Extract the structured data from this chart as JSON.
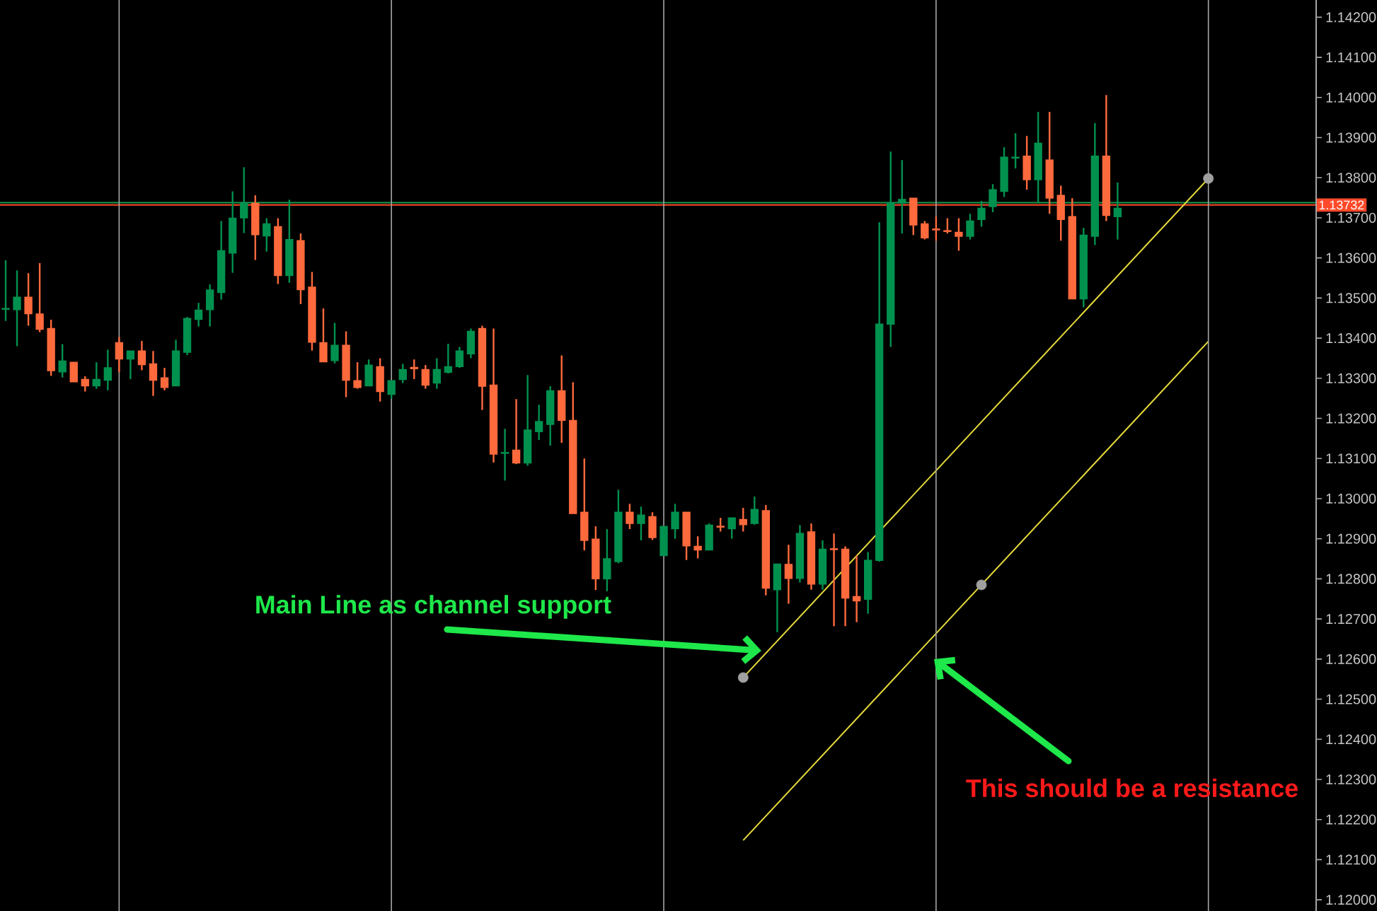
{
  "chart_data": {
    "type": "candlestick",
    "categories": [
      null,
      null,
      null,
      null,
      null,
      null,
      null,
      null,
      null,
      null,
      null,
      null,
      null,
      null,
      null,
      null,
      null,
      null,
      null,
      null,
      null,
      null,
      null,
      null,
      null,
      null,
      null,
      null,
      null,
      null,
      null,
      null,
      null,
      null,
      null,
      null,
      null,
      null,
      null,
      null,
      null,
      null,
      null,
      null,
      null,
      null,
      null,
      null,
      null,
      null,
      null,
      null,
      null,
      null,
      null,
      null,
      null,
      null,
      null,
      null,
      null,
      null,
      null,
      null,
      null,
      null,
      null,
      null,
      null,
      null,
      null,
      null,
      null,
      null,
      null,
      null,
      null,
      null,
      null,
      null,
      null,
      null,
      null,
      null,
      null,
      null,
      null,
      null,
      null,
      null,
      null,
      null,
      null,
      null,
      null,
      null,
      null,
      null,
      null,
      null,
      null,
      null,
      null,
      null,
      null,
      null,
      null,
      null,
      null,
      null,
      null,
      null,
      null,
      null,
      null,
      null
    ],
    "ohlc": [
      [
        1.13472,
        1.13594,
        1.13443,
        1.13474
      ],
      [
        1.13471,
        1.13569,
        1.1338,
        1.13502
      ],
      [
        1.13502,
        1.13562,
        1.13431,
        1.13461
      ],
      [
        1.1346,
        1.13587,
        1.13415,
        1.13422
      ],
      [
        1.13424,
        1.13446,
        1.13306,
        1.13319
      ],
      [
        1.13316,
        1.13385,
        1.13302,
        1.13343
      ],
      [
        1.1334,
        1.1334,
        1.13291,
        1.13291
      ],
      [
        1.13297,
        1.13305,
        1.13267,
        1.13281
      ],
      [
        1.13281,
        1.1334,
        1.13274,
        1.13297
      ],
      [
        1.13295,
        1.13371,
        1.1327,
        1.13326
      ],
      [
        1.13389,
        1.13403,
        1.13315,
        1.13348
      ],
      [
        1.13348,
        1.13368,
        1.13298,
        1.13368
      ],
      [
        1.13368,
        1.13393,
        1.1332,
        1.13334
      ],
      [
        1.13336,
        1.13368,
        1.13256,
        1.13295
      ],
      [
        1.13301,
        1.13326,
        1.1327,
        1.13277
      ],
      [
        1.13281,
        1.13396,
        1.13281,
        1.13368
      ],
      [
        1.13365,
        1.13453,
        1.13358,
        1.13449
      ],
      [
        1.13447,
        1.13488,
        1.13429,
        1.1347
      ],
      [
        1.13471,
        1.13534,
        1.13429,
        1.1352
      ],
      [
        1.13514,
        1.13692,
        1.13496,
        1.13618
      ],
      [
        1.13612,
        1.13766,
        1.13563,
        1.13699
      ],
      [
        1.137,
        1.13826,
        1.13662,
        1.13736
      ],
      [
        1.13736,
        1.13756,
        1.13595,
        1.13658
      ],
      [
        1.13655,
        1.13699,
        1.13616,
        1.13685
      ],
      [
        1.13678,
        1.13699,
        1.13535,
        1.13556
      ],
      [
        1.13556,
        1.13745,
        1.13538,
        1.13646
      ],
      [
        1.13643,
        1.13661,
        1.13485,
        1.13521
      ],
      [
        1.13527,
        1.13565,
        1.13369,
        1.1339
      ],
      [
        1.13389,
        1.13474,
        1.13341,
        1.13341
      ],
      [
        1.13344,
        1.13438,
        1.13337,
        1.13382
      ],
      [
        1.13382,
        1.13417,
        1.13253,
        1.13295
      ],
      [
        1.13294,
        1.1334,
        1.13274,
        1.13277
      ],
      [
        1.13281,
        1.13347,
        1.13281,
        1.13333
      ],
      [
        1.13329,
        1.1335,
        1.13242,
        1.13267
      ],
      [
        1.1326,
        1.13294,
        1.13249,
        1.13294
      ],
      [
        1.13297,
        1.13336,
        1.13288,
        1.13322
      ],
      [
        1.13327,
        1.13347,
        1.13298,
        1.13324
      ],
      [
        1.13322,
        1.13333,
        1.13274,
        1.13283
      ],
      [
        1.13288,
        1.1335,
        1.13274,
        1.13322
      ],
      [
        1.13315,
        1.13386,
        1.13312,
        1.13329
      ],
      [
        1.13329,
        1.13378,
        1.13326,
        1.13368
      ],
      [
        1.13361,
        1.13424,
        1.1335,
        1.13417
      ],
      [
        1.13424,
        1.13431,
        1.13221,
        1.1328
      ],
      [
        1.13283,
        1.13424,
        1.1309,
        1.13111
      ],
      [
        1.13113,
        1.13174,
        1.13045,
        1.13115
      ],
      [
        1.13121,
        1.13248,
        1.13086,
        1.13089
      ],
      [
        1.13089,
        1.13308,
        1.13082,
        1.13171
      ],
      [
        1.13167,
        1.13234,
        1.13146,
        1.13192
      ],
      [
        1.13185,
        1.1328,
        1.13132,
        1.13269
      ],
      [
        1.13269,
        1.13357,
        1.13139,
        1.13195
      ],
      [
        1.13195,
        1.1329,
        1.12963,
        1.12963
      ],
      [
        1.12966,
        1.131,
        1.12871,
        1.12896
      ],
      [
        1.12899,
        1.12931,
        1.12772,
        1.128
      ],
      [
        1.128,
        1.12924,
        1.12769,
        1.1285
      ],
      [
        1.12843,
        1.13022,
        1.12839,
        1.12966
      ],
      [
        1.12966,
        1.12987,
        1.12924,
        1.12938
      ],
      [
        1.12938,
        1.1298,
        1.12896,
        1.12959
      ],
      [
        1.12955,
        1.12966,
        1.12897,
        1.12903
      ],
      [
        1.12858,
        1.12931,
        1.12857,
        1.12931
      ],
      [
        1.12925,
        1.12987,
        1.129,
        1.12966
      ],
      [
        1.12966,
        1.12966,
        1.12847,
        1.12882
      ],
      [
        1.12881,
        1.12906,
        1.12851,
        1.12872
      ],
      [
        1.12872,
        1.12938,
        1.12872,
        1.12934
      ],
      [
        1.12931,
        1.12952,
        1.12918,
        1.12929
      ],
      [
        1.12925,
        1.12952,
        1.129,
        1.12952
      ],
      [
        1.12948,
        1.12977,
        1.12918,
        1.12935
      ],
      [
        1.12938,
        1.13005,
        1.12935,
        1.12973
      ],
      [
        1.1297,
        1.12984,
        1.12759,
        1.12777
      ],
      [
        1.12773,
        1.12837,
        1.12667,
        1.12837
      ],
      [
        1.12836,
        1.12885,
        1.12738,
        1.12801
      ],
      [
        1.12801,
        1.12934,
        1.12791,
        1.12913
      ],
      [
        1.12917,
        1.12938,
        1.12773,
        1.12787
      ],
      [
        1.12787,
        1.12896,
        1.12773,
        1.12874
      ],
      [
        1.12875,
        1.12913,
        1.12682,
        1.12873
      ],
      [
        1.12874,
        1.12881,
        1.12682,
        1.12752
      ],
      [
        1.12756,
        1.12858,
        1.12692,
        1.12745
      ],
      [
        1.12749,
        1.12867,
        1.12713,
        1.12846
      ],
      [
        1.12846,
        1.13689,
        1.12843,
        1.13435
      ],
      [
        1.13435,
        1.13865,
        1.13378,
        1.13737
      ],
      [
        1.13737,
        1.13844,
        1.13661,
        1.13746
      ],
      [
        1.13749,
        1.13749,
        1.13657,
        1.13682
      ],
      [
        1.13685,
        1.13692,
        1.13646,
        1.1365
      ],
      [
        1.13672,
        1.13703,
        1.13643,
        1.1367
      ],
      [
        1.13668,
        1.13699,
        1.13661,
        1.13666
      ],
      [
        1.13664,
        1.13699,
        1.13618,
        1.13654
      ],
      [
        1.13654,
        1.1371,
        1.13646,
        1.13692
      ],
      [
        1.13696,
        1.13742,
        1.13678,
        1.13724
      ],
      [
        1.13728,
        1.13784,
        1.13714,
        1.1377
      ],
      [
        1.13766,
        1.13876,
        1.13752,
        1.13851
      ],
      [
        1.13849,
        1.13911,
        1.13823,
        1.13851
      ],
      [
        1.13854,
        1.13904,
        1.1377,
        1.13795
      ],
      [
        1.13795,
        1.13964,
        1.13738,
        1.13886
      ],
      [
        1.13844,
        1.13964,
        1.1371,
        1.13749
      ],
      [
        1.13756,
        1.1378,
        1.13643,
        1.13696
      ],
      [
        1.13703,
        1.13749,
        1.13498,
        1.13498
      ],
      [
        1.13498,
        1.13675,
        1.13477,
        1.13657
      ],
      [
        1.13654,
        1.13936,
        1.13632,
        1.13854
      ],
      [
        1.13854,
        1.14006,
        1.13692,
        1.13706
      ],
      [
        1.13703,
        1.13788,
        1.13646,
        1.13724
      ],
      null,
      null,
      null,
      null,
      null,
      null,
      null,
      null,
      null,
      null,
      null,
      null,
      null,
      null,
      null,
      null,
      null
    ],
    "colors": [
      "#00914f",
      "#00914f",
      "#ff6a3d",
      "#ff6a3d",
      "#ff6a3d",
      "#00914f",
      "#ff6a3d",
      "#ff6a3d",
      "#00914f",
      "#00914f",
      "#ff6a3d",
      "#00914f",
      "#ff6a3d",
      "#ff6a3d",
      "#ff6a3d",
      "#00914f",
      "#00914f",
      "#00914f",
      "#00914f",
      "#00914f",
      "#00914f",
      "#00914f",
      "#ff6a3d",
      "#00914f",
      "#ff6a3d",
      "#00914f",
      "#ff6a3d",
      "#ff6a3d",
      "#ff6a3d",
      "#00914f",
      "#ff6a3d",
      "#ff6a3d",
      "#00914f",
      "#ff6a3d",
      "#00914f",
      "#00914f",
      "#ff6a3d",
      "#ff6a3d",
      "#00914f",
      "#00914f",
      "#00914f",
      "#00914f",
      "#ff6a3d",
      "#ff6a3d",
      "#00914f",
      "#ff6a3d",
      "#00914f",
      "#00914f",
      "#00914f",
      "#ff6a3d",
      "#ff6a3d",
      "#ff6a3d",
      "#ff6a3d",
      "#00914f",
      "#00914f",
      "#ff6a3d",
      "#00914f",
      "#ff6a3d",
      "#00914f",
      "#00914f",
      "#ff6a3d",
      "#ff6a3d",
      "#00914f",
      "#ff6a3d",
      "#00914f",
      "#ff6a3d",
      "#00914f",
      "#ff6a3d",
      "#00914f",
      "#ff6a3d",
      "#00914f",
      "#ff6a3d",
      "#00914f",
      "#ff6a3d",
      "#ff6a3d",
      "#ff6a3d",
      "#00914f",
      "#00914f",
      "#00914f",
      "#00914f",
      "#ff6a3d",
      "#ff6a3d",
      "#ff6a3d",
      "#ff6a3d",
      "#ff6a3d",
      "#00914f",
      "#00914f",
      "#00914f",
      "#00914f",
      "#00914f",
      "#ff6a3d",
      "#00914f",
      "#ff6a3d",
      "#ff6a3d",
      "#ff6a3d",
      "#00914f",
      "#00914f",
      "#ff6a3d",
      "#00914f",
      null,
      null,
      null,
      null,
      null,
      null,
      null,
      null,
      null,
      null,
      null,
      null,
      null,
      null,
      null,
      null,
      null
    ],
    "series": [
      {
        "type": "line",
        "color": "#e8dc3c",
        "values": [
          null,
          null,
          null,
          null,
          null,
          null,
          null,
          null,
          null,
          null,
          null,
          null,
          null,
          null,
          null,
          null,
          null,
          null,
          null,
          null,
          null,
          null,
          null,
          null,
          null,
          null,
          null,
          null,
          null,
          null,
          null,
          null,
          null,
          null,
          null,
          null,
          null,
          null,
          null,
          null,
          null,
          null,
          null,
          null,
          null,
          null,
          null,
          null,
          null,
          null,
          null,
          null,
          null,
          null,
          null,
          null,
          null,
          null,
          null,
          null,
          null,
          null,
          null,
          null,
          null,
          1.12554,
          null,
          null,
          null,
          null,
          null,
          null,
          null,
          null,
          null,
          null,
          null,
          null,
          null,
          null,
          null,
          null,
          null,
          null,
          null,
          null,
          null,
          null,
          null,
          null,
          null,
          null,
          null,
          null,
          null,
          null,
          null,
          null,
          null,
          null,
          null,
          null,
          null,
          null,
          null,
          null,
          1.13798,
          null,
          null,
          null,
          null,
          null,
          null,
          null,
          null,
          null
        ]
      },
      {
        "type": "line",
        "color": "#e8dc3c",
        "values": [
          null,
          null,
          null,
          null,
          null,
          null,
          null,
          null,
          null,
          null,
          null,
          null,
          null,
          null,
          null,
          null,
          null,
          null,
          null,
          null,
          null,
          null,
          null,
          null,
          null,
          null,
          null,
          null,
          null,
          null,
          null,
          null,
          null,
          null,
          null,
          null,
          null,
          null,
          null,
          null,
          null,
          null,
          null,
          null,
          null,
          null,
          null,
          null,
          null,
          null,
          null,
          null,
          null,
          null,
          null,
          null,
          null,
          null,
          null,
          null,
          null,
          null,
          null,
          null,
          null,
          1.12148,
          null,
          null,
          null,
          null,
          null,
          null,
          null,
          null,
          null,
          null,
          null,
          null,
          null,
          null,
          null,
          null,
          null,
          null,
          null,
          null,
          null,
          null,
          null,
          null,
          null,
          null,
          null,
          null,
          null,
          null,
          null,
          null,
          null,
          null,
          null,
          null,
          null,
          null,
          null,
          null,
          1.13392,
          null,
          null,
          null,
          null,
          null,
          null,
          null,
          null,
          null
        ]
      },
      {
        "type": "scatter",
        "color": "#a0a0a0",
        "marker": "circle",
        "values": [
          null,
          null,
          null,
          null,
          null,
          null,
          null,
          null,
          null,
          null,
          null,
          null,
          null,
          null,
          null,
          null,
          null,
          null,
          null,
          null,
          null,
          null,
          null,
          null,
          null,
          null,
          null,
          null,
          null,
          null,
          null,
          null,
          null,
          null,
          null,
          null,
          null,
          null,
          null,
          null,
          null,
          null,
          null,
          null,
          null,
          null,
          null,
          null,
          null,
          null,
          null,
          null,
          null,
          null,
          null,
          null,
          null,
          null,
          null,
          null,
          null,
          null,
          null,
          null,
          null,
          1.12554,
          null,
          null,
          null,
          null,
          null,
          null,
          null,
          null,
          null,
          null,
          null,
          null,
          null,
          null,
          null,
          null,
          null,
          null,
          null,
          null,
          1.12785,
          null,
          null,
          null,
          null,
          null,
          null,
          null,
          null,
          null,
          null,
          null,
          null,
          null,
          null,
          null,
          null,
          null,
          null,
          null,
          1.13798,
          null,
          null,
          null,
          null,
          null,
          null,
          null,
          null,
          null
        ]
      }
    ],
    "ylim": [
      1.11972,
      1.14243
    ],
    "yticks": [
      {
        "value": 1.12,
        "label": "1.12000"
      },
      {
        "value": 1.121,
        "label": "1.12100"
      },
      {
        "value": 1.122,
        "label": "1.12200"
      },
      {
        "value": 1.123,
        "label": "1.12300"
      },
      {
        "value": 1.124,
        "label": "1.12400"
      },
      {
        "value": 1.125,
        "label": "1.12500"
      },
      {
        "value": 1.126,
        "label": "1.12600"
      },
      {
        "value": 1.127,
        "label": "1.12700"
      },
      {
        "value": 1.128,
        "label": "1.12800"
      },
      {
        "value": 1.129,
        "label": "1.12900"
      },
      {
        "value": 1.13,
        "label": "1.13000"
      },
      {
        "value": 1.131,
        "label": "1.13100"
      },
      {
        "value": 1.132,
        "label": "1.13200"
      },
      {
        "value": 1.133,
        "label": "1.13300"
      },
      {
        "value": 1.134,
        "label": "1.13400"
      },
      {
        "value": 1.135,
        "label": "1.13500"
      },
      {
        "value": 1.136,
        "label": "1.13600"
      },
      {
        "value": 1.137,
        "label": "1.13700"
      },
      {
        "value": 1.138,
        "label": "1.13800"
      },
      {
        "value": 1.139,
        "label": "1.13900"
      },
      {
        "value": 1.14,
        "label": "1.14000"
      },
      {
        "value": 1.141,
        "label": "1.14100"
      },
      {
        "value": 1.142,
        "label": "1.14200"
      }
    ],
    "tick_labels": "y",
    "grid": "x",
    "ref_lines": [
      {
        "axis": "y",
        "value": 1.13738,
        "color": "#1a9a50"
      },
      {
        "axis": "y",
        "value": 1.13732,
        "label": "1.13732",
        "color": "#ff4a2a"
      }
    ],
    "annotations": [
      "Main Line as channel support",
      "This should be a resistance"
    ]
  }
}
